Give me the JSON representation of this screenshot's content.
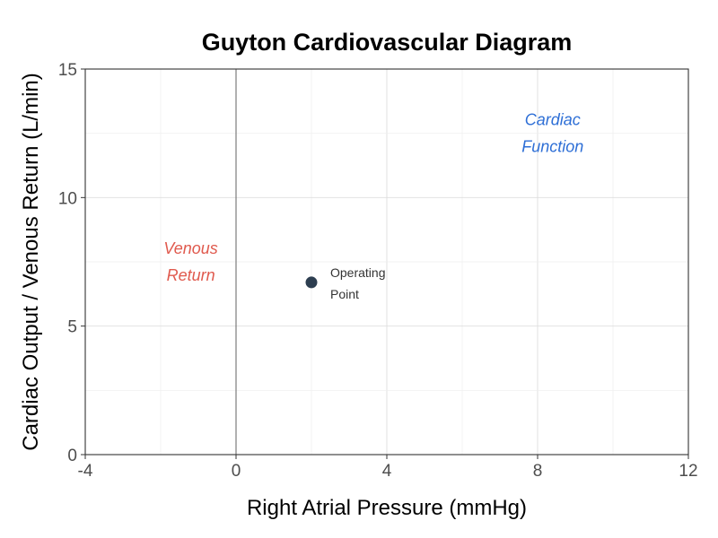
{
  "chart_data": {
    "type": "scatter",
    "title": "Guyton Cardiovascular Diagram",
    "xlabel": "Right Atrial Pressure (mmHg)",
    "ylabel": "Cardiac Output / Venous Return (L/min)",
    "xlim": [
      -4,
      12
    ],
    "ylim": [
      0,
      15
    ],
    "x_ticks": [
      -4,
      0,
      4,
      8,
      12
    ],
    "y_ticks": [
      0,
      5,
      10,
      15
    ],
    "grid": true,
    "reference_lines": [
      {
        "axis": "x",
        "value": 0
      }
    ],
    "points": [
      {
        "x": 2,
        "y": 6.7,
        "label_lines": [
          "Operating",
          "Point"
        ],
        "color": "#2d3e50"
      }
    ],
    "annotations": [
      {
        "lines": [
          "Venous",
          "Return"
        ],
        "x": -1.2,
        "y": 7.5,
        "color": "#e05a4e"
      },
      {
        "lines": [
          "Cardiac",
          "Function"
        ],
        "x": 8.4,
        "y": 12.5,
        "color": "#2e6fd6"
      }
    ]
  }
}
